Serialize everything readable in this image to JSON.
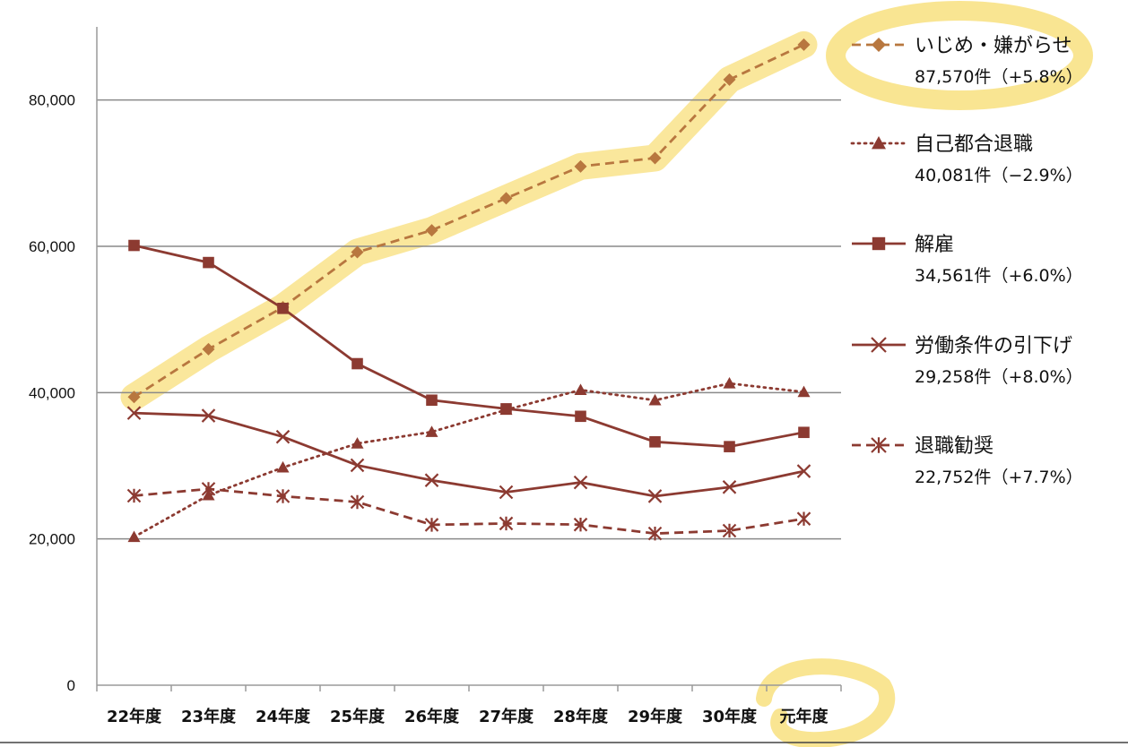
{
  "chart_data": {
    "type": "line",
    "categories": [
      "22年度",
      "23年度",
      "24年度",
      "25年度",
      "26年度",
      "27年度",
      "28年度",
      "29年度",
      "30年度",
      "元年度"
    ],
    "ylim": [
      0,
      90000
    ],
    "yticks": [
      0,
      20000,
      40000,
      60000,
      80000
    ],
    "ytick_labels": [
      "0",
      "20,000",
      "40,000",
      "60,000",
      "80,000"
    ],
    "grid": true,
    "legend_position": "right",
    "series": [
      {
        "name": "いじめ・嫌がらせ",
        "detail": "87,570件（+5.8%）",
        "color": "#b8773f",
        "line_style": "dashed",
        "marker": "diamond",
        "highlighted": true,
        "values": [
          39405,
          45939,
          51670,
          59197,
          62191,
          66566,
          70917,
          72067,
          82797,
          87570
        ]
      },
      {
        "name": "自己都合退職",
        "detail": "40,081件（−2.9%）",
        "color": "#8c3a31",
        "line_style": "dotted",
        "marker": "triangle",
        "values": [
          20265,
          25966,
          29763,
          33049,
          34626,
          37648,
          40364,
          38954,
          41258,
          40081
        ]
      },
      {
        "name": "解雇",
        "detail": "34,561件（+6.0%）",
        "color": "#8c3a31",
        "line_style": "solid",
        "marker": "square",
        "values": [
          60118,
          57785,
          51515,
          43956,
          38966,
          37787,
          36760,
          33269,
          32614,
          34561
        ]
      },
      {
        "name": "労働条件の引下げ",
        "detail": "29,258件（+8.0%）",
        "color": "#8c3a31",
        "line_style": "solid",
        "marker": "x",
        "values": [
          37210,
          36849,
          33955,
          30067,
          28015,
          26392,
          27723,
          25841,
          27082,
          29258
        ]
      },
      {
        "name": "退職勧奨",
        "detail": "22,752件（+7.7%）",
        "color": "#8c3a31",
        "line_style": "dashed",
        "marker": "asterisk",
        "values": [
          25902,
          26828,
          25838,
          25041,
          21928,
          22110,
          21954,
          20736,
          21125,
          22752
        ]
      }
    ],
    "annotations": [
      "highlight around いじめ・嫌がらせ series and legend",
      "circle around 元年度"
    ],
    "highlight_color": "#f5d34a"
  }
}
